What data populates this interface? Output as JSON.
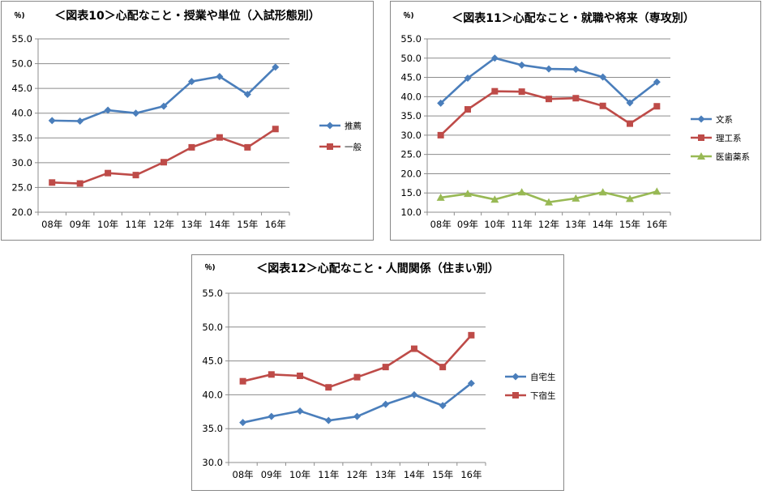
{
  "chart_data": [
    {
      "type": "line",
      "title": "＜図表10＞心配なこと・授業や単位（入試形態別）",
      "unit_label": "％)",
      "categories": [
        "08年",
        "09年",
        "10年",
        "11年",
        "12年",
        "13年",
        "14年",
        "15年",
        "16年"
      ],
      "ylim": [
        20.0,
        55.0
      ],
      "yticks": [
        "55.0",
        "50.0",
        "45.0",
        "40.0",
        "35.0",
        "30.0",
        "25.0",
        "20.0"
      ],
      "grid": true,
      "legend_position": "right",
      "series": [
        {
          "name": "推薦",
          "color": "#4A7EBB",
          "marker": "diamond",
          "values": [
            38.5,
            38.4,
            40.6,
            40.0,
            41.4,
            46.4,
            47.4,
            43.8,
            49.3
          ]
        },
        {
          "name": "一般",
          "color": "#BE4B48",
          "marker": "square",
          "values": [
            26.0,
            25.8,
            27.9,
            27.5,
            30.1,
            33.1,
            35.1,
            33.1,
            36.8
          ]
        }
      ]
    },
    {
      "type": "line",
      "title": "＜図表11＞心配なこと・就職や将来（専攻別）",
      "unit_label": "％)",
      "categories": [
        "08年",
        "09年",
        "10年",
        "11年",
        "12年",
        "13年",
        "14年",
        "15年",
        "16年"
      ],
      "ylim": [
        10.0,
        55.0
      ],
      "yticks": [
        "55.0",
        "50.0",
        "45.0",
        "40.0",
        "35.0",
        "30.0",
        "25.0",
        "20.0",
        "15.0",
        "10.0"
      ],
      "grid": true,
      "legend_position": "right",
      "series": [
        {
          "name": "文系",
          "color": "#4A7EBB",
          "marker": "diamond",
          "values": [
            38.3,
            44.8,
            50.0,
            48.2,
            47.2,
            47.1,
            45.1,
            38.4,
            43.8
          ]
        },
        {
          "name": "理工系",
          "color": "#BE4B48",
          "marker": "square",
          "values": [
            30.0,
            36.7,
            41.4,
            41.3,
            39.4,
            39.6,
            37.6,
            33.0,
            37.5
          ]
        },
        {
          "name": "医歯薬系",
          "color": "#98B954",
          "marker": "triangle",
          "values": [
            13.8,
            14.8,
            13.3,
            15.2,
            12.6,
            13.6,
            15.2,
            13.5,
            15.4
          ]
        }
      ]
    },
    {
      "type": "line",
      "title": "＜図表12＞心配なこと・人間関係（住まい別）",
      "unit_label": "％)",
      "categories": [
        "08年",
        "09年",
        "10年",
        "11年",
        "12年",
        "13年",
        "14年",
        "15年",
        "16年"
      ],
      "ylim": [
        30.0,
        55.0
      ],
      "yticks": [
        "55.0",
        "50.0",
        "45.0",
        "40.0",
        "35.0",
        "30.0"
      ],
      "grid": true,
      "legend_position": "right",
      "series": [
        {
          "name": "自宅生",
          "color": "#4A7EBB",
          "marker": "diamond",
          "values": [
            35.9,
            36.8,
            37.6,
            36.2,
            36.8,
            38.6,
            40.0,
            38.4,
            41.7
          ]
        },
        {
          "name": "下宿生",
          "color": "#BE4B48",
          "marker": "square",
          "values": [
            42.0,
            43.0,
            42.8,
            41.1,
            42.6,
            44.1,
            46.8,
            44.1,
            48.8
          ]
        }
      ]
    }
  ]
}
